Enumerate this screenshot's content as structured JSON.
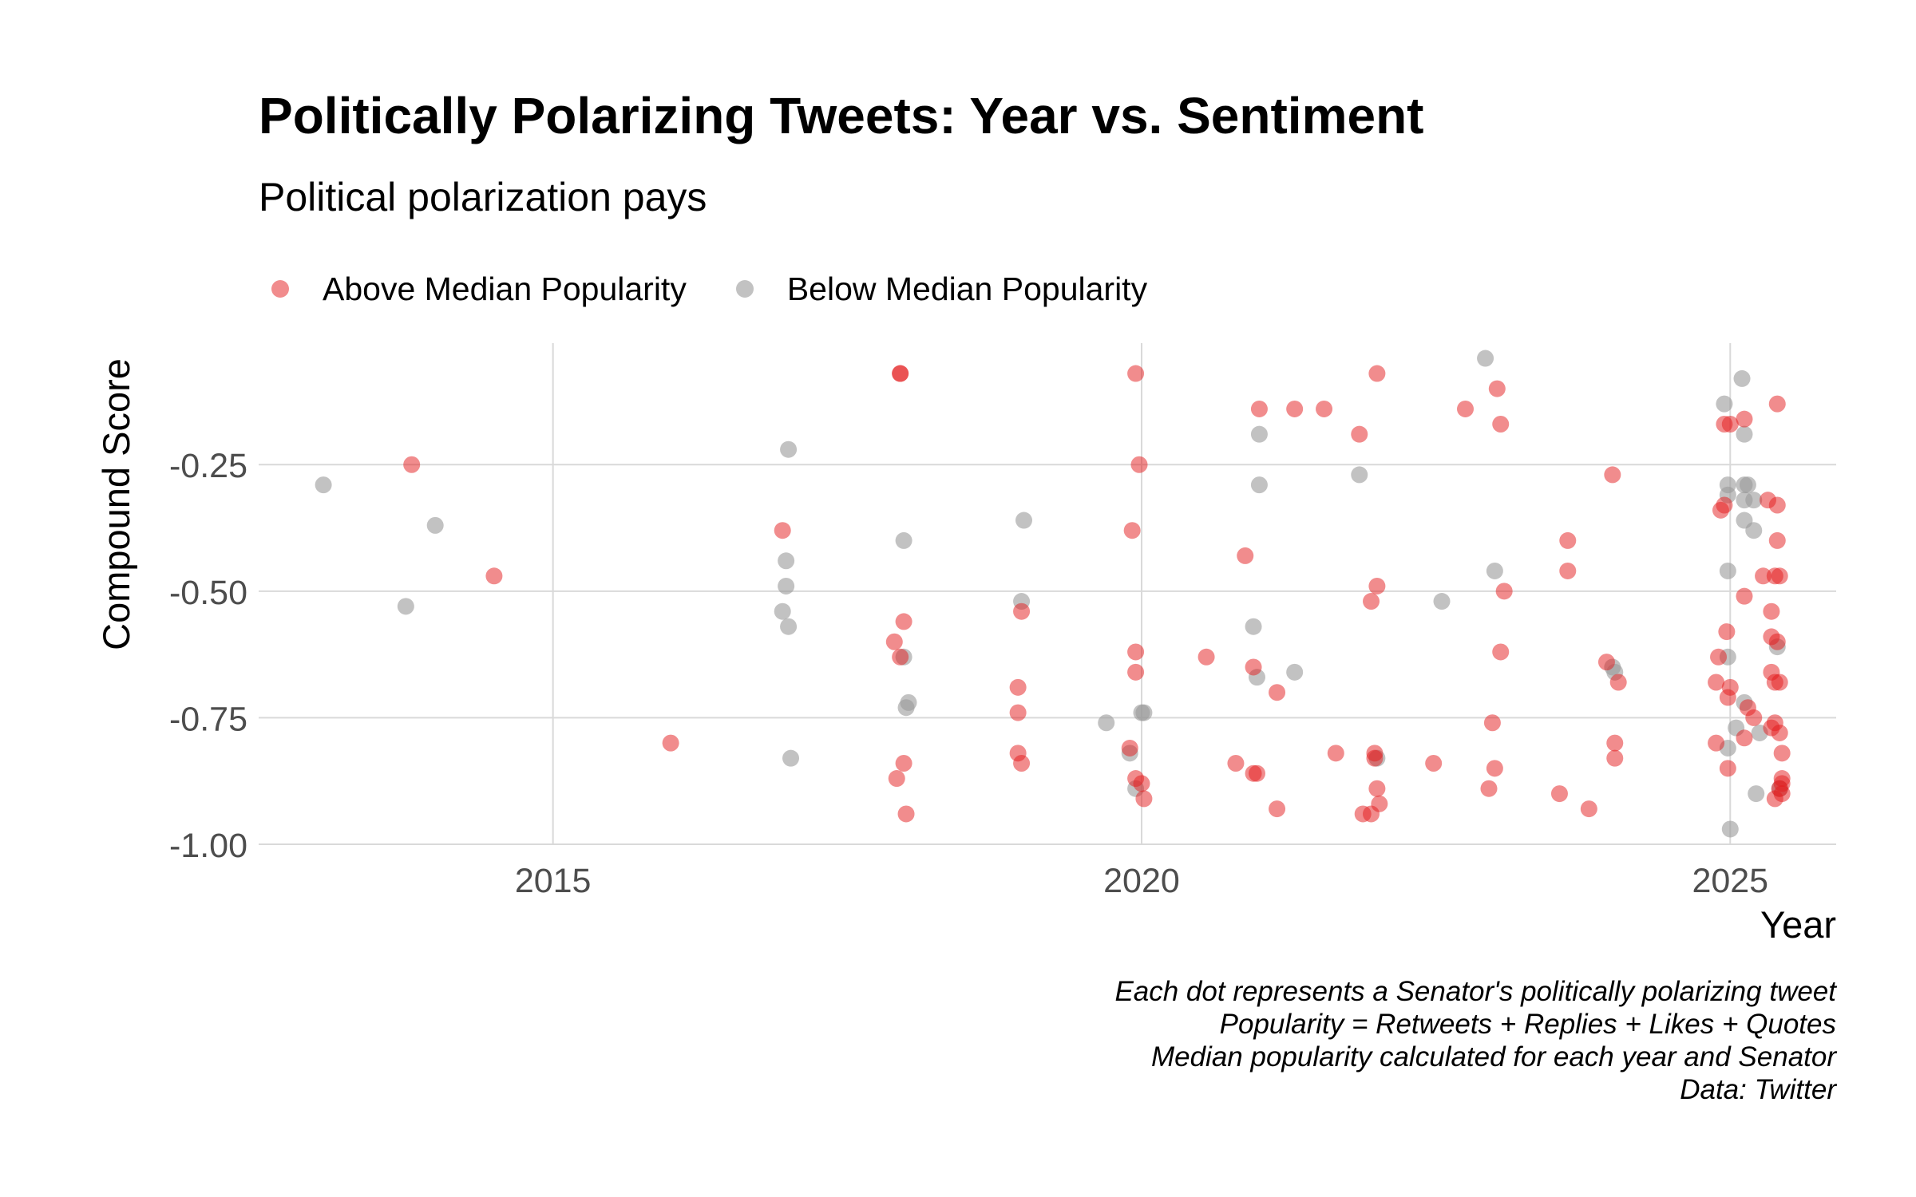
{
  "chart_data": {
    "type": "scatter",
    "title": "Politically Polarizing Tweets: Year vs. Sentiment",
    "subtitle": "Political polarization pays",
    "xlabel": "Year",
    "ylabel": "Compound Score",
    "xlim": [
      2012.5,
      2025.9
    ],
    "ylim": [
      -1.0,
      -0.01
    ],
    "x_ticks": [
      2015,
      2020,
      2025
    ],
    "y_ticks": [
      -1.0,
      -0.75,
      -0.5,
      -0.25
    ],
    "y_tick_labels": [
      "-1.00",
      "-0.75",
      "-0.50",
      "-0.25"
    ],
    "grid": true,
    "legend_position": "top-left",
    "caption": [
      "Each dot represents a Senator's politically polarizing tweet",
      "Popularity = Retweets + Replies + Likes + Quotes",
      "Median popularity calculated for each year and Senator",
      "Data: Twitter"
    ],
    "series": [
      {
        "name": "Above Median Popularity",
        "color": "#e41a1c",
        "points": [
          [
            2013.8,
            -0.25
          ],
          [
            2014.5,
            -0.47
          ],
          [
            2016.0,
            -0.8
          ],
          [
            2016.95,
            -0.38
          ],
          [
            2017.95,
            -0.07
          ],
          [
            2017.95,
            -0.07
          ],
          [
            2017.98,
            -0.56
          ],
          [
            2017.9,
            -0.6
          ],
          [
            2017.95,
            -0.63
          ],
          [
            2017.98,
            -0.84
          ],
          [
            2017.92,
            -0.87
          ],
          [
            2018.0,
            -0.94
          ],
          [
            2018.95,
            -0.69
          ],
          [
            2018.95,
            -0.74
          ],
          [
            2018.98,
            -0.54
          ],
          [
            2018.95,
            -0.82
          ],
          [
            2018.98,
            -0.84
          ],
          [
            2019.95,
            -0.07
          ],
          [
            2019.98,
            -0.25
          ],
          [
            2019.92,
            -0.38
          ],
          [
            2019.95,
            -0.62
          ],
          [
            2019.95,
            -0.66
          ],
          [
            2019.9,
            -0.81
          ],
          [
            2019.95,
            -0.87
          ],
          [
            2020.0,
            -0.88
          ],
          [
            2020.02,
            -0.91
          ],
          [
            2020.55,
            -0.63
          ],
          [
            2020.8,
            -0.84
          ],
          [
            2020.88,
            -0.43
          ],
          [
            2020.95,
            -0.65
          ],
          [
            2021.0,
            -0.14
          ],
          [
            2020.95,
            -0.86
          ],
          [
            2020.98,
            -0.86
          ],
          [
            2021.15,
            -0.7
          ],
          [
            2021.15,
            -0.93
          ],
          [
            2021.3,
            -0.14
          ],
          [
            2021.55,
            -0.14
          ],
          [
            2021.65,
            -0.82
          ],
          [
            2021.85,
            -0.19
          ],
          [
            2021.88,
            -0.94
          ],
          [
            2021.95,
            -0.94
          ],
          [
            2021.95,
            -0.52
          ],
          [
            2022.0,
            -0.49
          ],
          [
            2021.98,
            -0.82
          ],
          [
            2021.98,
            -0.83
          ],
          [
            2022.0,
            -0.89
          ],
          [
            2022.02,
            -0.92
          ],
          [
            2022.0,
            -0.07
          ],
          [
            2022.48,
            -0.84
          ],
          [
            2022.75,
            -0.14
          ],
          [
            2022.95,
            -0.89
          ],
          [
            2022.98,
            -0.76
          ],
          [
            2023.0,
            -0.85
          ],
          [
            2023.05,
            -0.62
          ],
          [
            2023.08,
            -0.5
          ],
          [
            2023.05,
            -0.17
          ],
          [
            2023.02,
            -0.1
          ],
          [
            2023.55,
            -0.9
          ],
          [
            2023.62,
            -0.4
          ],
          [
            2023.62,
            -0.46
          ],
          [
            2023.8,
            -0.93
          ],
          [
            2023.95,
            -0.64
          ],
          [
            2024.0,
            -0.27
          ],
          [
            2024.02,
            -0.8
          ],
          [
            2024.02,
            -0.83
          ],
          [
            2024.05,
            -0.68
          ],
          [
            2024.9,
            -0.63
          ],
          [
            2024.88,
            -0.68
          ],
          [
            2024.88,
            -0.8
          ],
          [
            2024.92,
            -0.34
          ],
          [
            2024.95,
            -0.33
          ],
          [
            2024.95,
            -0.17
          ],
          [
            2025.0,
            -0.17
          ],
          [
            2024.97,
            -0.58
          ],
          [
            2025.0,
            -0.69
          ],
          [
            2024.98,
            -0.71
          ],
          [
            2024.98,
            -0.85
          ],
          [
            2025.12,
            -0.16
          ],
          [
            2025.12,
            -0.51
          ],
          [
            2025.15,
            -0.73
          ],
          [
            2025.12,
            -0.79
          ],
          [
            2025.2,
            -0.75
          ],
          [
            2025.28,
            -0.47
          ],
          [
            2025.32,
            -0.32
          ],
          [
            2025.35,
            -0.54
          ],
          [
            2025.35,
            -0.59
          ],
          [
            2025.35,
            -0.66
          ],
          [
            2025.38,
            -0.68
          ],
          [
            2025.38,
            -0.76
          ],
          [
            2025.35,
            -0.77
          ],
          [
            2025.4,
            -0.13
          ],
          [
            2025.4,
            -0.33
          ],
          [
            2025.4,
            -0.4
          ],
          [
            2025.38,
            -0.47
          ],
          [
            2025.42,
            -0.47
          ],
          [
            2025.4,
            -0.6
          ],
          [
            2025.42,
            -0.68
          ],
          [
            2025.42,
            -0.78
          ],
          [
            2025.44,
            -0.82
          ],
          [
            2025.44,
            -0.87
          ],
          [
            2025.44,
            -0.88
          ],
          [
            2025.42,
            -0.89
          ],
          [
            2025.38,
            -0.91
          ],
          [
            2025.44,
            -0.9
          ]
        ]
      },
      {
        "name": "Below Median Popularity",
        "color": "#999999",
        "points": [
          [
            2013.05,
            -0.29
          ],
          [
            2013.75,
            -0.53
          ],
          [
            2014.0,
            -0.37
          ],
          [
            2016.95,
            -0.54
          ],
          [
            2016.98,
            -0.44
          ],
          [
            2016.98,
            -0.49
          ],
          [
            2017.0,
            -0.22
          ],
          [
            2017.0,
            -0.57
          ],
          [
            2017.02,
            -0.83
          ],
          [
            2017.98,
            -0.4
          ],
          [
            2017.98,
            -0.63
          ],
          [
            2018.0,
            -0.73
          ],
          [
            2018.02,
            -0.72
          ],
          [
            2019.0,
            -0.36
          ],
          [
            2018.98,
            -0.52
          ],
          [
            2019.7,
            -0.76
          ],
          [
            2019.9,
            -0.82
          ],
          [
            2019.95,
            -0.89
          ],
          [
            2020.0,
            -0.74
          ],
          [
            2020.02,
            -0.74
          ],
          [
            2020.95,
            -0.57
          ],
          [
            2020.98,
            -0.67
          ],
          [
            2021.0,
            -0.19
          ],
          [
            2021.0,
            -0.29
          ],
          [
            2021.3,
            -0.66
          ],
          [
            2021.85,
            -0.27
          ],
          [
            2022.0,
            -0.83
          ],
          [
            2022.55,
            -0.52
          ],
          [
            2022.92,
            -0.04
          ],
          [
            2023.0,
            -0.46
          ],
          [
            2024.0,
            -0.65
          ],
          [
            2024.02,
            -0.66
          ],
          [
            2024.95,
            -0.13
          ],
          [
            2024.98,
            -0.29
          ],
          [
            2024.98,
            -0.31
          ],
          [
            2024.98,
            -0.46
          ],
          [
            2024.98,
            -0.63
          ],
          [
            2024.98,
            -0.81
          ],
          [
            2025.0,
            -0.97
          ],
          [
            2025.05,
            -0.77
          ],
          [
            2025.1,
            -0.08
          ],
          [
            2025.12,
            -0.19
          ],
          [
            2025.12,
            -0.29
          ],
          [
            2025.12,
            -0.32
          ],
          [
            2025.15,
            -0.29
          ],
          [
            2025.12,
            -0.36
          ],
          [
            2025.2,
            -0.32
          ],
          [
            2025.2,
            -0.38
          ],
          [
            2025.12,
            -0.72
          ],
          [
            2025.25,
            -0.78
          ],
          [
            2025.22,
            -0.9
          ],
          [
            2025.4,
            -0.61
          ],
          [
            2025.42,
            -0.89
          ]
        ]
      }
    ]
  }
}
